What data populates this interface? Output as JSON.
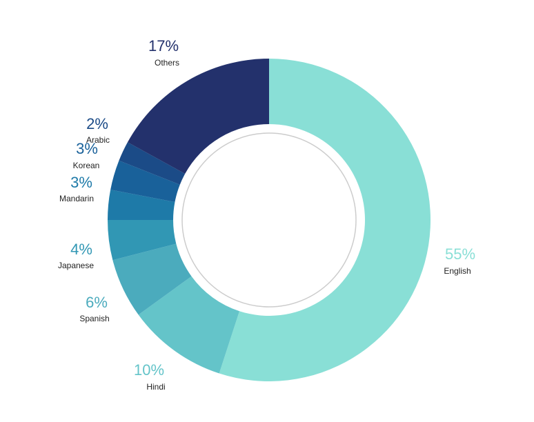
{
  "chart_data": {
    "type": "pie",
    "variant": "donut",
    "title": "",
    "legend": "none",
    "slices": [
      {
        "label": "English",
        "value": 55,
        "value_label": "55%",
        "color": "#89dfd6"
      },
      {
        "label": "Hindi",
        "value": 10,
        "value_label": "10%",
        "color": "#64c4c9"
      },
      {
        "label": "Spanish",
        "value": 6,
        "value_label": "6%",
        "color": "#4babbd"
      },
      {
        "label": "Japanese",
        "value": 4,
        "value_label": "4%",
        "color": "#3197b4"
      },
      {
        "label": "Mandarin",
        "value": 3,
        "value_label": "3%",
        "color": "#1e7aa8"
      },
      {
        "label": "Korean",
        "value": 3,
        "value_label": "3%",
        "color": "#19619a"
      },
      {
        "label": "Arabic",
        "value": 2,
        "value_label": "2%",
        "color": "#1b4b87"
      },
      {
        "label": "Others",
        "value": 17,
        "value_label": "17%",
        "color": "#23316c"
      }
    ],
    "center_ring_color": "#cccccc"
  }
}
